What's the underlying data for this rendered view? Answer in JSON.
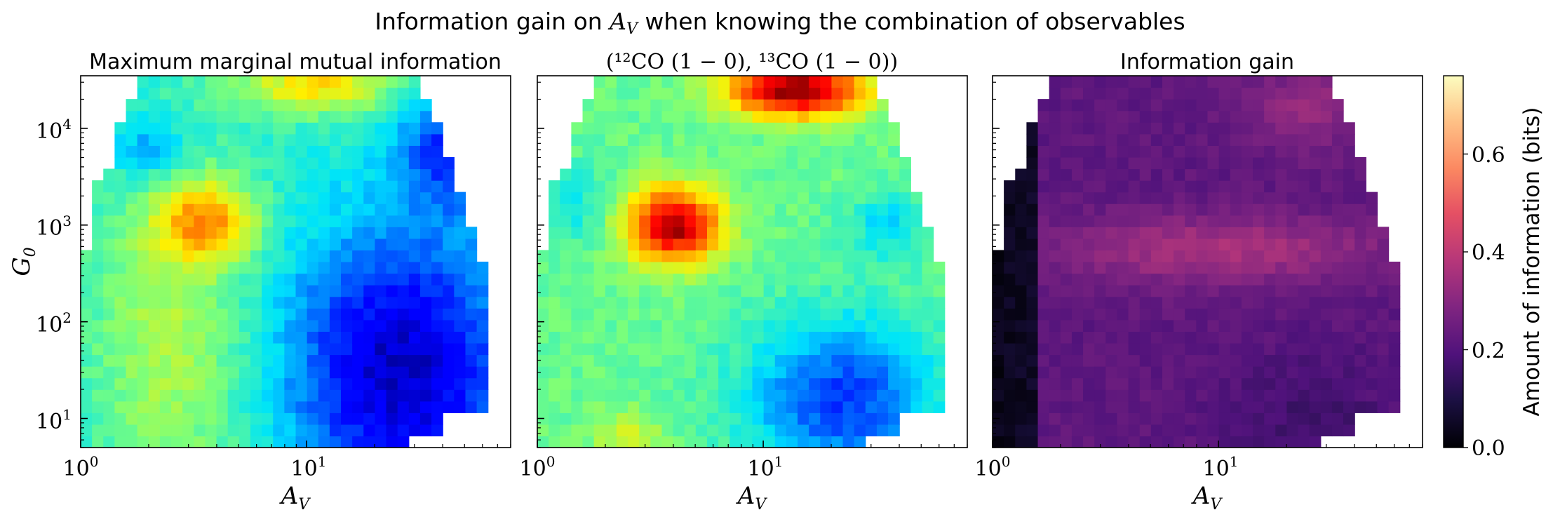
{
  "suptitle": {
    "prefix": "Information gain on ",
    "var_main": "A",
    "var_sub": "V",
    "suffix": " when knowing the combination of observables"
  },
  "panels": [
    {
      "title": "Maximum marginal mutual information",
      "cmap": "jet"
    },
    {
      "title": "(¹²CO (1 − 0), ¹³CO (1 − 0))",
      "cmap": "jet"
    },
    {
      "title": "Information gain",
      "cmap": "magma"
    }
  ],
  "chart_data": {
    "type": "heatmap",
    "x_axis": {
      "label": "A_V",
      "label_main": "A",
      "label_sub": "V",
      "scale": "log",
      "range": [
        1,
        80
      ],
      "major_ticks": [
        {
          "value": 1,
          "base": "10",
          "exp": "0"
        },
        {
          "value": 10,
          "base": "10",
          "exp": "1"
        }
      ]
    },
    "y_axis": {
      "label": "G_0",
      "label_main": "G",
      "label_sub": "0",
      "scale": "log",
      "range": [
        5,
        35000
      ],
      "major_ticks": [
        {
          "value": 10,
          "base": "10",
          "exp": "1"
        },
        {
          "value": 100,
          "base": "10",
          "exp": "2"
        },
        {
          "value": 1000,
          "base": "10",
          "exp": "3"
        },
        {
          "value": 10000,
          "base": "10",
          "exp": "4"
        }
      ]
    },
    "colorbar": {
      "label": "Amount of information (bits)",
      "range": [
        0.0,
        0.76
      ],
      "ticks": [
        0.0,
        0.2,
        0.4,
        0.6
      ],
      "tick_labels": [
        "0.0",
        "0.2",
        "0.4",
        "0.6"
      ],
      "colormap": "magma"
    },
    "grid": {
      "columns": 38,
      "rows": 32
    },
    "approximate_features": {
      "panel_1": "high (~0.5) along low A_V (2–6) band, peak near A_V≈3.7, G0≈1100; low (~0.05) for A_V>10 with G0<1000",
      "panel_2": "peak (~0.75) near A_V≈4, G0≈1000 and A_V≈12–20, G0≈25000; moderate (~0.3–0.45) elsewhere",
      "panel_3": "near zero for A_V<1.8; moderate (~0.3–0.45) ridge around G0≈500 for A_V 3–40"
    }
  }
}
